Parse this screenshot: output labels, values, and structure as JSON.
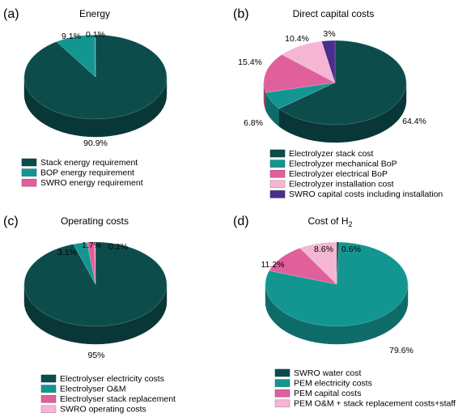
{
  "chart_data": [
    {
      "type": "pie",
      "panel": "(a)",
      "title": "Energy",
      "categories": [
        "Stack energy requirement",
        "BOP energy requirement",
        "SWRO energy requirement"
      ],
      "values": [
        90.9,
        9.1,
        0.1
      ],
      "value_labels": [
        "90.9%",
        "9.1%",
        "0.1%"
      ],
      "colors": [
        "#0c4d4c",
        "#139691",
        "#e0609c"
      ],
      "legend": "bottom"
    },
    {
      "type": "pie",
      "panel": "(b)",
      "title": "Direct capital costs",
      "categories": [
        "Electrolyzer stack cost",
        "Electrolyzer mechanical BoP",
        "Electrolyzer electrical BoP",
        "Electrolyzer installation cost",
        "SWRO capital costs including installation"
      ],
      "values": [
        64.4,
        6.8,
        15.4,
        10.4,
        3
      ],
      "value_labels": [
        "64.4%",
        "6.8%",
        "15.4%",
        "10.4%",
        "3%"
      ],
      "colors": [
        "#0c4d4c",
        "#139691",
        "#e0609c",
        "#f4b6d2",
        "#4a2e8c"
      ],
      "legend": "bottom"
    },
    {
      "type": "pie",
      "panel": "(c)",
      "title": "Operating costs",
      "categories": [
        "Electrolyser electricity costs",
        "Electrolyser O&M",
        "Electrolyser stack replacement",
        "SWRO operating costs"
      ],
      "values": [
        95,
        3.1,
        1.7,
        0.2
      ],
      "value_labels": [
        "95%",
        "3.1%",
        "1.7%",
        "0.2%"
      ],
      "colors": [
        "#0c4d4c",
        "#139691",
        "#e0609c",
        "#f4b6d2"
      ],
      "legend": "bottom"
    },
    {
      "type": "pie",
      "panel": "(d)",
      "title": "Cost of H",
      "title_sub": "2",
      "categories": [
        "SWRO water cost",
        "PEM electricity costs",
        "PEM capital costs",
        "PEM O&M + stack replacement costs+staff"
      ],
      "values": [
        0.6,
        79.6,
        11.2,
        8.6
      ],
      "value_labels": [
        "0.6%",
        "79.6%",
        "11.2%",
        "8.6%"
      ],
      "colors": [
        "#0c4d4c",
        "#139691",
        "#e0609c",
        "#f4b6d2"
      ],
      "legend": "bottom"
    }
  ]
}
